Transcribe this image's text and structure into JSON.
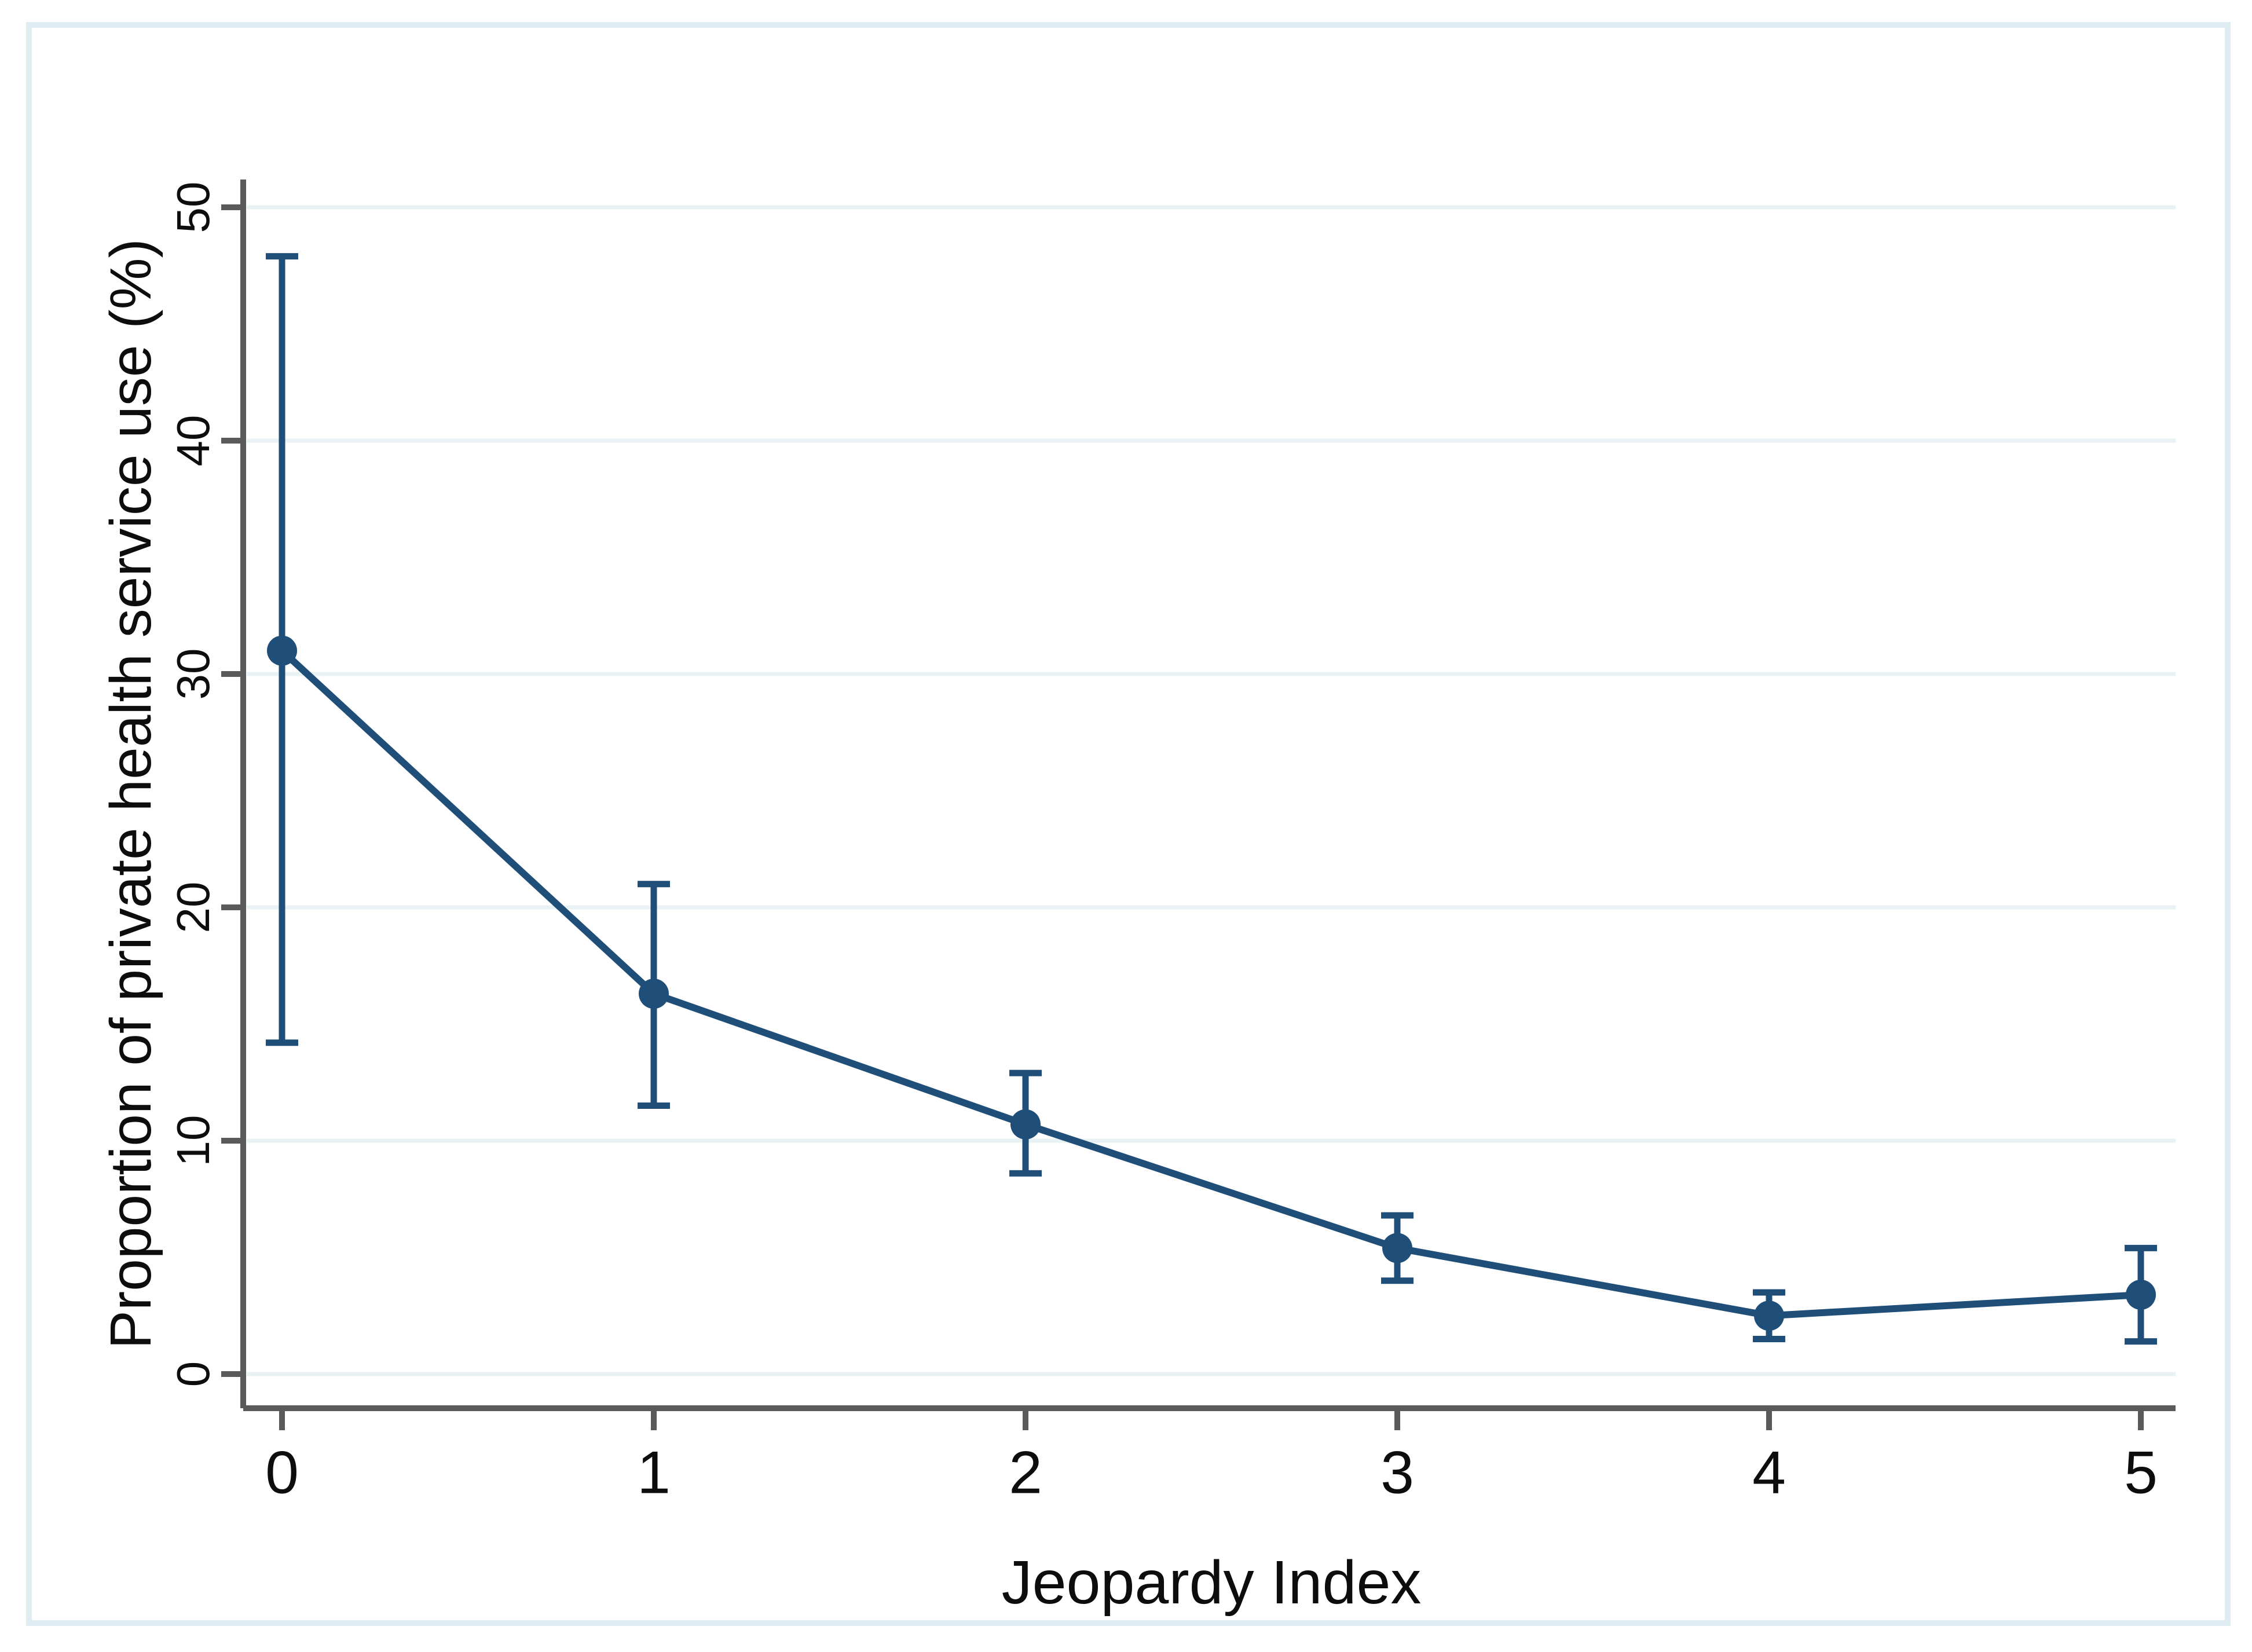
{
  "figure": {
    "background_color": "#ffffff",
    "border_color": "#dfecf1"
  },
  "chart_data": {
    "type": "line",
    "title": "",
    "xlabel": "Jeopardy Index",
    "ylabel": "Proportion of private health service use (%)",
    "x": [
      0,
      1,
      2,
      3,
      4,
      5
    ],
    "x_tick_labels": [
      "0",
      "1",
      "2",
      "3",
      "4",
      "5"
    ],
    "y_tick_labels": [
      "0",
      "10",
      "20",
      "30",
      "40",
      "50"
    ],
    "xlim": [
      0,
      5
    ],
    "ylim": [
      0,
      51.5
    ],
    "grid": "horizontal",
    "legend": "none",
    "series": [
      {
        "name": "Proportion of private health service use (%)",
        "marker": "circle",
        "color": "#1f4e79",
        "values": [
          31.0,
          16.3,
          10.7,
          5.4,
          2.5,
          3.4
        ],
        "ci_upper": [
          47.9,
          21.0,
          12.9,
          6.8,
          3.5,
          5.4
        ],
        "ci_lower": [
          14.2,
          11.5,
          8.6,
          4.0,
          1.5,
          1.4
        ]
      }
    ],
    "style": {
      "line_color": "#1f4e79",
      "marker_color": "#1f4e79",
      "error_bar_color": "#1f4e79",
      "grid_color": "#e8f1f3",
      "axis_color": "#5a5a5a",
      "text_color": "#0d0d0d"
    }
  }
}
